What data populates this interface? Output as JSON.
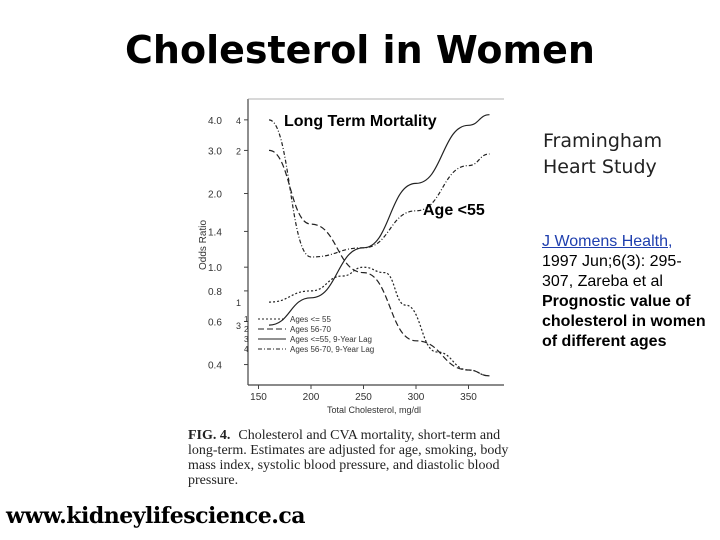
{
  "slide": {
    "title": "Cholesterol in Women",
    "study": [
      "Framingham",
      "Heart Study"
    ],
    "citation": {
      "journal_link": "J Womens Health,",
      "ref_rest": " 1997 Jun;6(3): 295-307, Zareba et al",
      "bold_text": "Prognostic value of cholesterol in women of different ages"
    },
    "website": "www.kidneylifescience.ca"
  },
  "figure": {
    "overlay_title": "Long Term Mortality",
    "overlay_age": "Age <55",
    "caption_label": "FIG. 4.",
    "caption_text": "Cholesterol and CVA mortality, short-term and long-term. Estimates are adjusted for age, smoking, body mass index, systolic blood pressure, and diastolic blood pressure.",
    "chart_data": {
      "type": "line",
      "xlabel": "Total Cholesterol, mg/dl",
      "ylabel": "Odds Ratio",
      "y_scale": "log",
      "x_ticks": [
        "150",
        "200",
        "250",
        "300",
        "350"
      ],
      "y_ticks": [
        "0.4",
        "0.6",
        "0.8",
        "1.0",
        "1.4",
        "2.0",
        "3.0",
        "4.0"
      ],
      "series": [
        {
          "name": "Ages <= 55",
          "label": "1",
          "x": [
            160,
            200,
            230,
            250,
            270,
            290,
            320,
            350,
            370
          ],
          "y": [
            0.72,
            0.8,
            0.92,
            1.0,
            0.95,
            0.7,
            0.45,
            0.38,
            0.36
          ]
        },
        {
          "name": "Ages 56-70",
          "label": "2",
          "x": [
            160,
            200,
            250,
            300,
            350,
            370
          ],
          "y": [
            3.0,
            1.5,
            0.95,
            0.5,
            0.38,
            0.36
          ]
        },
        {
          "name": "Ages <=55, 9-Year Lag",
          "label": "3",
          "x": [
            160,
            200,
            250,
            300,
            350,
            370
          ],
          "y": [
            0.58,
            0.75,
            1.2,
            2.2,
            3.8,
            4.2
          ]
        },
        {
          "name": "Ages 56-70, 9-Year Lag",
          "label": "4",
          "x": [
            160,
            200,
            250,
            300,
            350,
            370
          ],
          "y": [
            4.0,
            1.1,
            1.2,
            1.7,
            2.6,
            2.9
          ]
        }
      ]
    }
  }
}
